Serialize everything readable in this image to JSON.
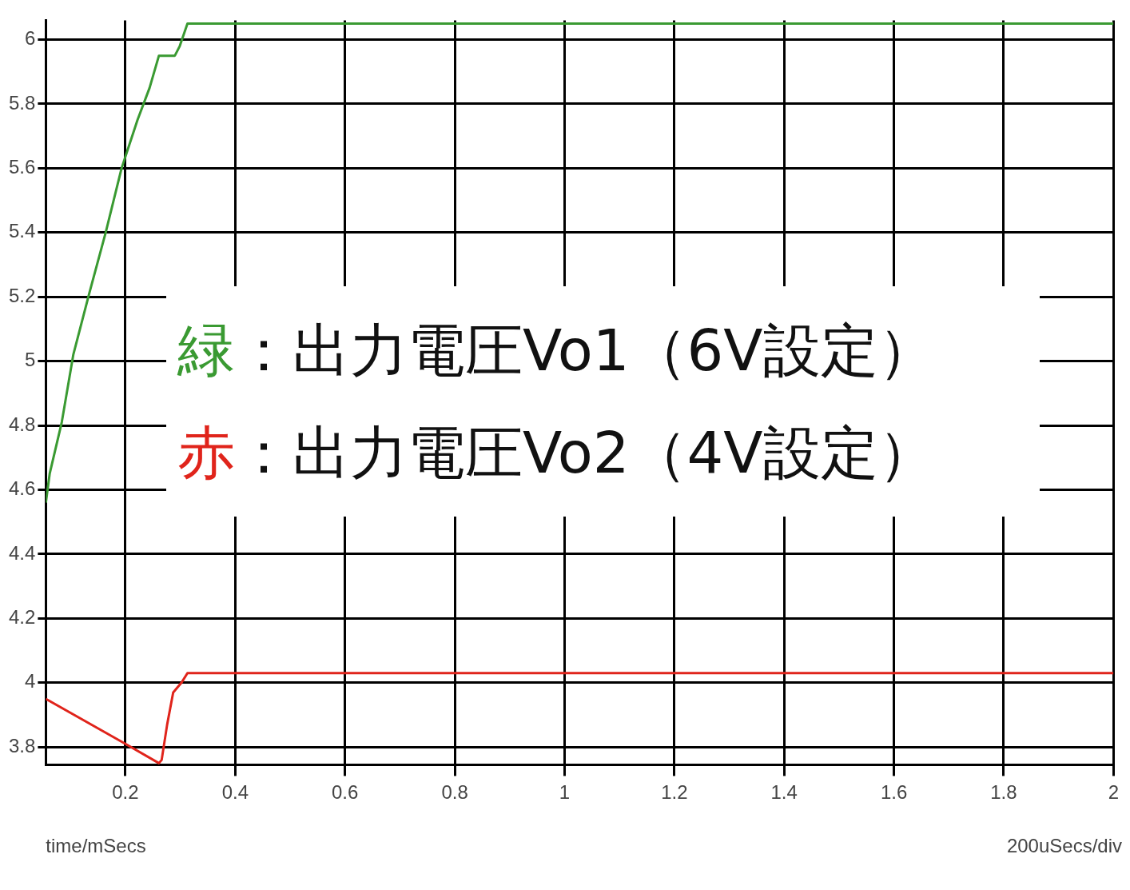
{
  "chart_data": {
    "type": "line",
    "xlabel": "time/mSecs",
    "annotations": [
      "緑：出力電圧Vo1（6V設定）",
      "赤：出力電圧Vo2（4V設定）",
      "200uSecs/div"
    ],
    "xlim": [
      0.055,
      2
    ],
    "xticks": [
      0.2,
      0.4,
      0.6,
      0.8,
      1,
      1.2,
      1.4,
      1.6,
      1.8,
      2
    ],
    "ylim": [
      3.745,
      6.06
    ],
    "yticks": [
      3.8,
      4,
      4.2,
      4.4,
      4.6,
      4.8,
      5,
      5.2,
      5.4,
      5.6,
      5.8,
      6
    ],
    "grid": true,
    "legend": false,
    "marker": "none",
    "line_style": "solid",
    "series": [
      {
        "color": "#3a9a32",
        "x": [
          0.055,
          0.062,
          0.084,
          0.105,
          0.134,
          0.164,
          0.193,
          0.222,
          0.244,
          0.261,
          0.29,
          0.299,
          0.313,
          2
        ],
        "values": [
          4.56,
          4.65,
          4.81,
          5.02,
          5.21,
          5.4,
          5.6,
          5.75,
          5.85,
          5.95,
          5.95,
          5.98,
          6.05,
          6.05
        ]
      },
      {
        "color": "#e0241b",
        "x": [
          0.055,
          0.2,
          0.261,
          0.266,
          0.276,
          0.287,
          0.302,
          0.313,
          2
        ],
        "values": [
          3.95,
          3.81,
          3.75,
          3.76,
          3.87,
          3.97,
          4.0,
          4.03,
          4.03
        ]
      }
    ]
  }
}
